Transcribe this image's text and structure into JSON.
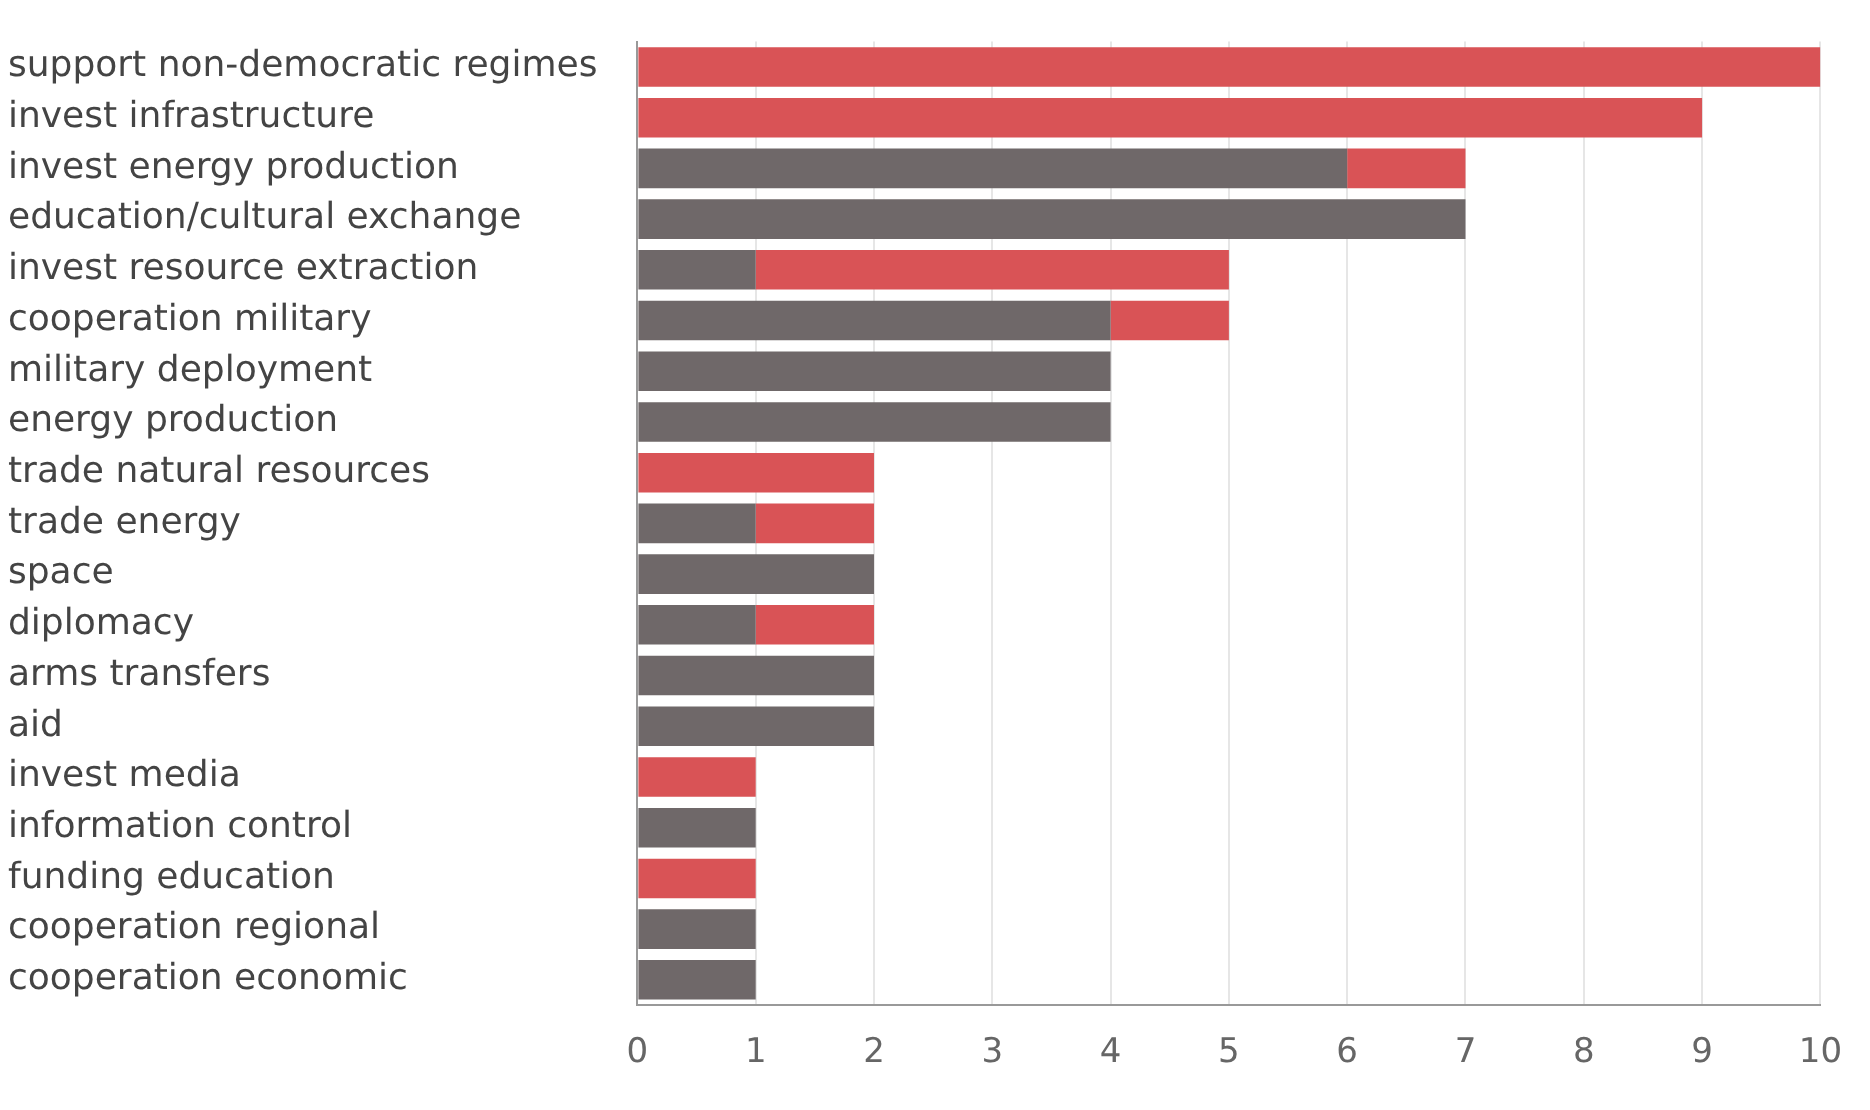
{
  "chart_data": {
    "type": "bar",
    "orientation": "horizontal",
    "stacked": true,
    "grid": "x",
    "categories": [
      "support non-democratic regimes",
      "invest infrastructure",
      "invest energy production",
      "education/cultural exchange",
      "invest resource extraction",
      "cooperation military",
      "military deployment",
      "energy production",
      "trade natural resources",
      "trade energy",
      "space",
      "diplomacy",
      "arms transfers",
      "aid",
      "invest media",
      "information control",
      "funding education",
      "cooperation regional",
      "cooperation economic"
    ],
    "series": [
      {
        "color": "#6f6869",
        "values": [
          0,
          0,
          6,
          7,
          1,
          4,
          4,
          4,
          0,
          1,
          2,
          1,
          2,
          2,
          0,
          1,
          0,
          1,
          1
        ]
      },
      {
        "color": "#d95356",
        "values": [
          10,
          9,
          1,
          0,
          4,
          1,
          0,
          0,
          2,
          1,
          0,
          1,
          0,
          0,
          1,
          0,
          1,
          0,
          0
        ]
      }
    ],
    "xlim": [
      0,
      10
    ],
    "xticks": [
      0,
      1,
      2,
      3,
      4,
      5,
      6,
      7,
      8,
      9,
      10
    ]
  }
}
